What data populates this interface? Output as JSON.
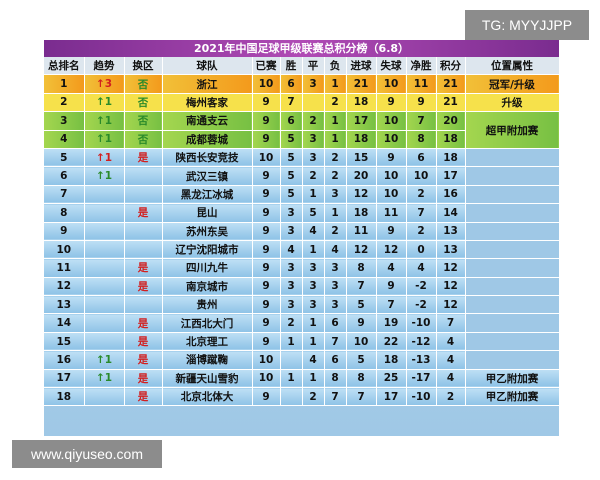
{
  "overlay": {
    "tg_text": "TG: MYYJJPP",
    "site_text": "www.qiyuseo.com"
  },
  "table": {
    "title": "2021年中国足球甲级联赛总积分榜（6.8）",
    "headers": [
      "总排名",
      "趋势",
      "换区",
      "球队",
      "已赛",
      "胜",
      "平",
      "负",
      "进球",
      "失球",
      "净胜",
      "积分",
      "位置属性"
    ],
    "rows": [
      {
        "rank": "1",
        "trend": "↑3",
        "trend_dir": "up",
        "swap": "否",
        "team": "浙江",
        "played": "10",
        "w": "6",
        "d": "3",
        "l": "1",
        "gf": "21",
        "ga": "10",
        "gd": "11",
        "pts": "21"
      },
      {
        "rank": "2",
        "trend": "↑1",
        "trend_dir": "down",
        "swap": "否",
        "team": "梅州客家",
        "played": "9",
        "w": "7",
        "d": "",
        "l": "2",
        "gf": "18",
        "ga": "9",
        "gd": "9",
        "pts": "21"
      },
      {
        "rank": "3",
        "trend": "↑1",
        "trend_dir": "down",
        "swap": "否",
        "team": "南通支云",
        "played": "9",
        "w": "6",
        "d": "2",
        "l": "1",
        "gf": "17",
        "ga": "10",
        "gd": "7",
        "pts": "20"
      },
      {
        "rank": "4",
        "trend": "↑1",
        "trend_dir": "down",
        "swap": "否",
        "team": "成都蓉城",
        "played": "9",
        "w": "5",
        "d": "3",
        "l": "1",
        "gf": "18",
        "ga": "10",
        "gd": "8",
        "pts": "18"
      },
      {
        "rank": "5",
        "trend": "↑1",
        "trend_dir": "up",
        "swap": "是",
        "team": "陕西长安竞技",
        "played": "10",
        "w": "5",
        "d": "3",
        "l": "2",
        "gf": "15",
        "ga": "9",
        "gd": "6",
        "pts": "18"
      },
      {
        "rank": "6",
        "trend": "↑1",
        "trend_dir": "down",
        "swap": "",
        "team": "武汉三镇",
        "played": "9",
        "w": "5",
        "d": "2",
        "l": "2",
        "gf": "20",
        "ga": "10",
        "gd": "10",
        "pts": "17"
      },
      {
        "rank": "7",
        "trend": "",
        "trend_dir": "",
        "swap": "",
        "team": "黑龙江冰城",
        "played": "9",
        "w": "5",
        "d": "1",
        "l": "3",
        "gf": "12",
        "ga": "10",
        "gd": "2",
        "pts": "16"
      },
      {
        "rank": "8",
        "trend": "",
        "trend_dir": "",
        "swap": "是",
        "team": "昆山",
        "played": "9",
        "w": "3",
        "d": "5",
        "l": "1",
        "gf": "18",
        "ga": "11",
        "gd": "7",
        "pts": "14"
      },
      {
        "rank": "9",
        "trend": "",
        "trend_dir": "",
        "swap": "",
        "team": "苏州东吴",
        "played": "9",
        "w": "3",
        "d": "4",
        "l": "2",
        "gf": "11",
        "ga": "9",
        "gd": "2",
        "pts": "13"
      },
      {
        "rank": "10",
        "trend": "",
        "trend_dir": "",
        "swap": "",
        "team": "辽宁沈阳城市",
        "played": "9",
        "w": "4",
        "d": "1",
        "l": "4",
        "gf": "12",
        "ga": "12",
        "gd": "0",
        "pts": "13"
      },
      {
        "rank": "11",
        "trend": "",
        "trend_dir": "",
        "swap": "是",
        "team": "四川九牛",
        "played": "9",
        "w": "3",
        "d": "3",
        "l": "3",
        "gf": "8",
        "ga": "4",
        "gd": "4",
        "pts": "12"
      },
      {
        "rank": "12",
        "trend": "",
        "trend_dir": "",
        "swap": "是",
        "team": "南京城市",
        "played": "9",
        "w": "3",
        "d": "3",
        "l": "3",
        "gf": "7",
        "ga": "9",
        "gd": "-2",
        "pts": "12"
      },
      {
        "rank": "13",
        "trend": "",
        "trend_dir": "",
        "swap": "",
        "team": "贵州",
        "played": "9",
        "w": "3",
        "d": "3",
        "l": "3",
        "gf": "5",
        "ga": "7",
        "gd": "-2",
        "pts": "12"
      },
      {
        "rank": "14",
        "trend": "",
        "trend_dir": "",
        "swap": "是",
        "team": "江西北大门",
        "played": "9",
        "w": "2",
        "d": "1",
        "l": "6",
        "gf": "9",
        "ga": "19",
        "gd": "-10",
        "pts": "7"
      },
      {
        "rank": "15",
        "trend": "",
        "trend_dir": "",
        "swap": "是",
        "team": "北京理工",
        "played": "9",
        "w": "1",
        "d": "1",
        "l": "7",
        "gf": "10",
        "ga": "22",
        "gd": "-12",
        "pts": "4"
      },
      {
        "rank": "16",
        "trend": "↑1",
        "trend_dir": "down",
        "swap": "是",
        "team": "淄博蹴鞠",
        "played": "10",
        "w": "",
        "d": "4",
        "l": "6",
        "gf": "5",
        "ga": "18",
        "gd": "-13",
        "pts": "4"
      },
      {
        "rank": "17",
        "trend": "↑1",
        "trend_dir": "down",
        "swap": "是",
        "team": "新疆天山雪豹",
        "played": "10",
        "w": "1",
        "d": "1",
        "l": "8",
        "gf": "8",
        "ga": "25",
        "gd": "-17",
        "pts": "4"
      },
      {
        "rank": "18",
        "trend": "",
        "trend_dir": "",
        "swap": "是",
        "team": "北京北体大",
        "played": "9",
        "w": "",
        "d": "2",
        "l": "7",
        "gf": "7",
        "ga": "17",
        "gd": "-10",
        "pts": "2"
      }
    ],
    "attributes": {
      "champion": "冠军/升级",
      "promote": "升级",
      "csl_playoff": "超甲附加赛",
      "second_playoff_1": "甲乙附加赛",
      "second_playoff_2": "甲乙附加赛"
    }
  }
}
